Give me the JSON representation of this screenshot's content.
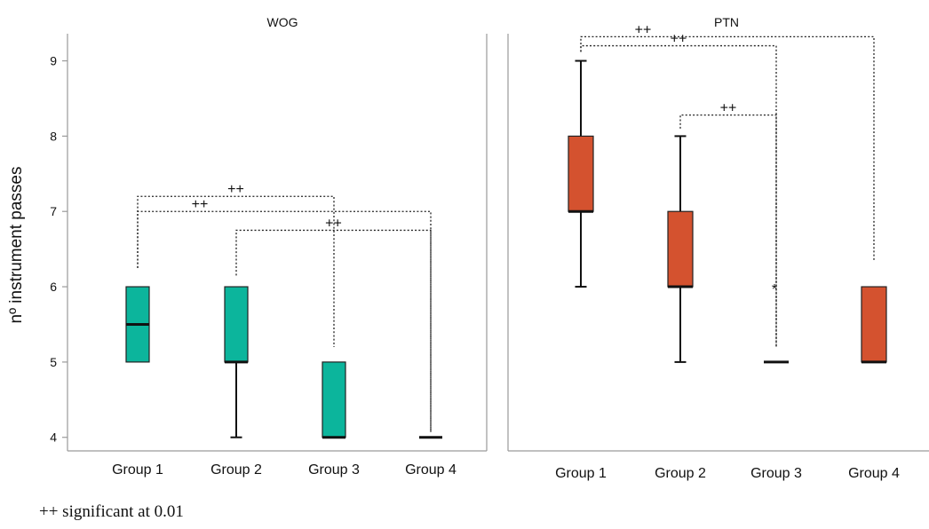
{
  "chart_data": {
    "type": "boxplot",
    "ylabel": "nº  instrument passes",
    "ylim": [
      3.82,
      9.36
    ],
    "yticks": [
      4,
      5,
      6,
      7,
      8,
      9
    ],
    "categories": [
      "Group 1",
      "Group 2",
      "Group 3",
      "Group 4"
    ],
    "grid": false,
    "legend": "none",
    "footnote": "++ significant at 0.01",
    "panels": [
      {
        "title": "WOG",
        "color": "#0cb59c",
        "boxes": [
          {
            "category": "Group 1",
            "whisker_low": 5,
            "q1": 5,
            "median": 5.5,
            "q3": 6,
            "whisker_high": 6
          },
          {
            "category": "Group 2",
            "whisker_low": 4,
            "q1": 5,
            "median": 5,
            "q3": 6,
            "whisker_high": 6
          },
          {
            "category": "Group 3",
            "whisker_low": 4,
            "q1": 4,
            "median": 4,
            "q3": 5,
            "whisker_high": 5
          },
          {
            "category": "Group 4",
            "whisker_low": 4,
            "q1": 4,
            "median": 4,
            "q3": 4,
            "whisker_high": 4
          }
        ],
        "outliers": [],
        "significance": [
          {
            "from": "Group 1",
            "to": "Group 3",
            "label": "++",
            "left_end": 6.25,
            "top": 7.2,
            "right_end": 5.2
          },
          {
            "from": "Group 1",
            "to": "Group 4",
            "label": "++",
            "left_end": 6.25,
            "top": 7.0,
            "right_end": 4.07
          },
          {
            "from": "Group 2",
            "to": "Group 4",
            "label": "++",
            "left_end": 6.15,
            "top": 6.75,
            "right_end": 4.07
          }
        ]
      },
      {
        "title": "PTN",
        "color": "#d4522f",
        "boxes": [
          {
            "category": "Group 1",
            "whisker_low": 6,
            "q1": 7,
            "median": 7,
            "q3": 8,
            "whisker_high": 9
          },
          {
            "category": "Group 2",
            "whisker_low": 5,
            "q1": 6,
            "median": 6,
            "q3": 7,
            "whisker_high": 8
          },
          {
            "category": "Group 3",
            "whisker_low": 5,
            "q1": 5,
            "median": 5,
            "q3": 5,
            "whisker_high": 5
          },
          {
            "category": "Group 4",
            "whisker_low": 5,
            "q1": 5,
            "median": 5,
            "q3": 6,
            "whisker_high": 6
          }
        ],
        "outliers": [
          {
            "category": "Group 3",
            "value": 6,
            "marker": "*"
          }
        ],
        "significance": [
          {
            "from": "Group 1",
            "to": "Group 4",
            "label": "++",
            "left_end": 9.12,
            "top": 9.32,
            "right_end": 6.35
          },
          {
            "from": "Group 1",
            "to": "Group 3",
            "label": "++",
            "left_end": 9.12,
            "top": 9.2,
            "right_end": 5.2
          },
          {
            "from": "Group 2",
            "to": "Group 3",
            "label": "++",
            "left_end": 8.1,
            "top": 8.28,
            "right_end": 5.2
          }
        ]
      }
    ]
  }
}
